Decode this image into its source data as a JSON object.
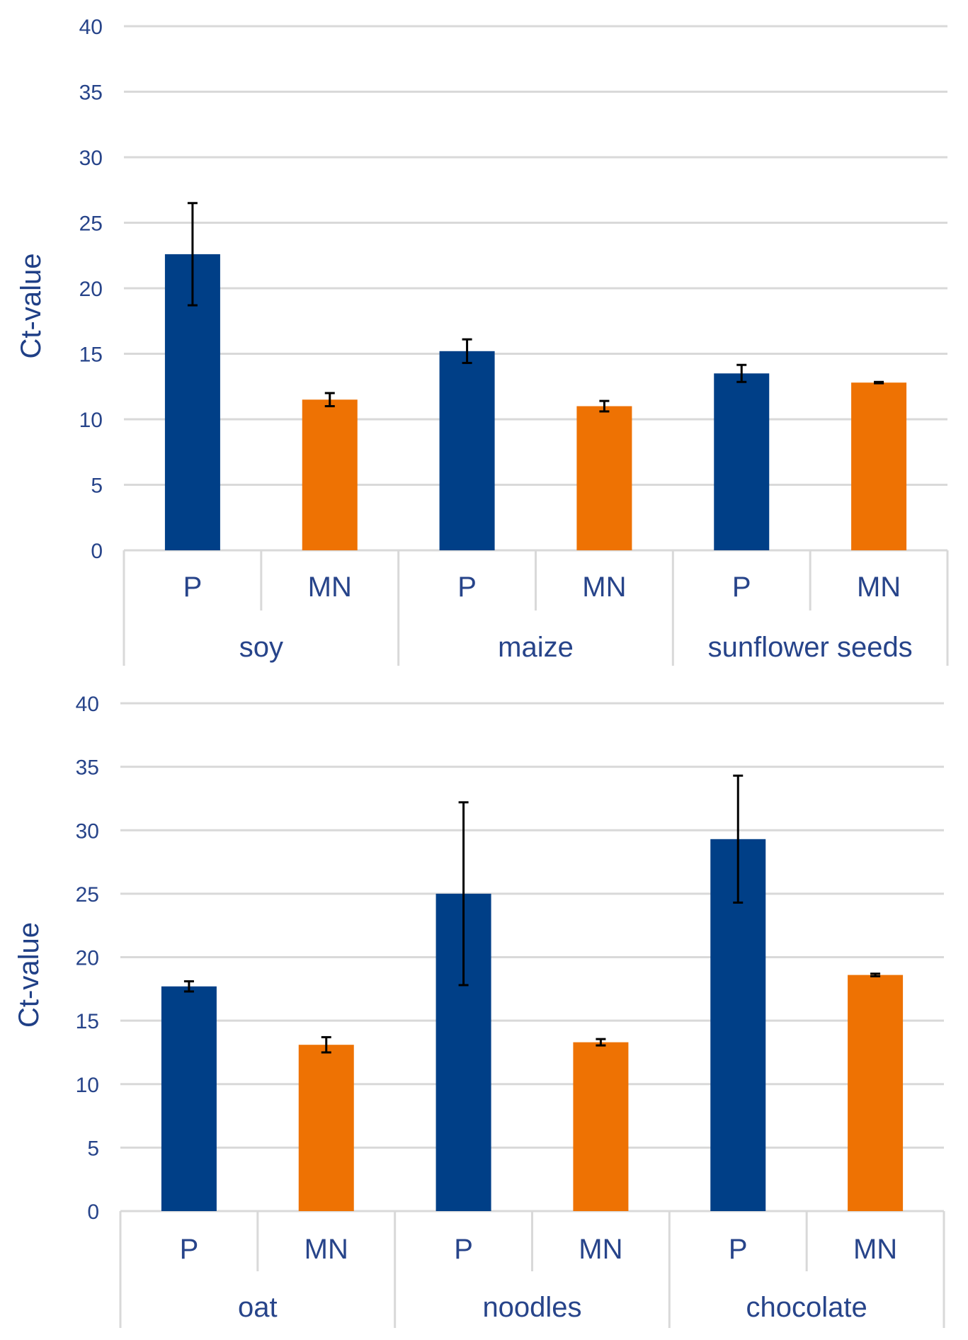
{
  "chart_data": [
    {
      "type": "bar",
      "ylabel": "Ct-value",
      "ylim": [
        0,
        40
      ],
      "yticks": [
        0,
        5,
        10,
        15,
        20,
        25,
        30,
        35,
        40
      ],
      "groups": [
        {
          "name": "soy",
          "bars": [
            {
              "label": "P",
              "value": 22.6,
              "err": 3.9
            },
            {
              "label": "MN",
              "value": 11.5,
              "err": 0.5
            }
          ]
        },
        {
          "name": "maize",
          "bars": [
            {
              "label": "P",
              "value": 15.2,
              "err": 0.9
            },
            {
              "label": "MN",
              "value": 11.0,
              "err": 0.4
            }
          ]
        },
        {
          "name": "sunflower seeds",
          "bars": [
            {
              "label": "P",
              "value": 13.5,
              "err": 0.65
            },
            {
              "label": "MN",
              "value": 12.8,
              "err": 0.05
            }
          ]
        }
      ],
      "colors": {
        "P": "#003f87",
        "MN": "#ee7203"
      }
    },
    {
      "type": "bar",
      "ylabel": "Ct-value",
      "ylim": [
        0,
        40
      ],
      "yticks": [
        0,
        5,
        10,
        15,
        20,
        25,
        30,
        35,
        40
      ],
      "groups": [
        {
          "name": "oat",
          "bars": [
            {
              "label": "P",
              "value": 17.7,
              "err": 0.4
            },
            {
              "label": "MN",
              "value": 13.1,
              "err": 0.6
            }
          ]
        },
        {
          "name": "noodles",
          "bars": [
            {
              "label": "P",
              "value": 25.0,
              "err": 7.2
            },
            {
              "label": "MN",
              "value": 13.3,
              "err": 0.25
            }
          ]
        },
        {
          "name": "chocolate",
          "bars": [
            {
              "label": "P",
              "value": 29.3,
              "err": 5.0
            },
            {
              "label": "MN",
              "value": 18.6,
              "err": 0.1
            }
          ]
        }
      ],
      "colors": {
        "P": "#003f87",
        "MN": "#ee7203"
      }
    }
  ]
}
